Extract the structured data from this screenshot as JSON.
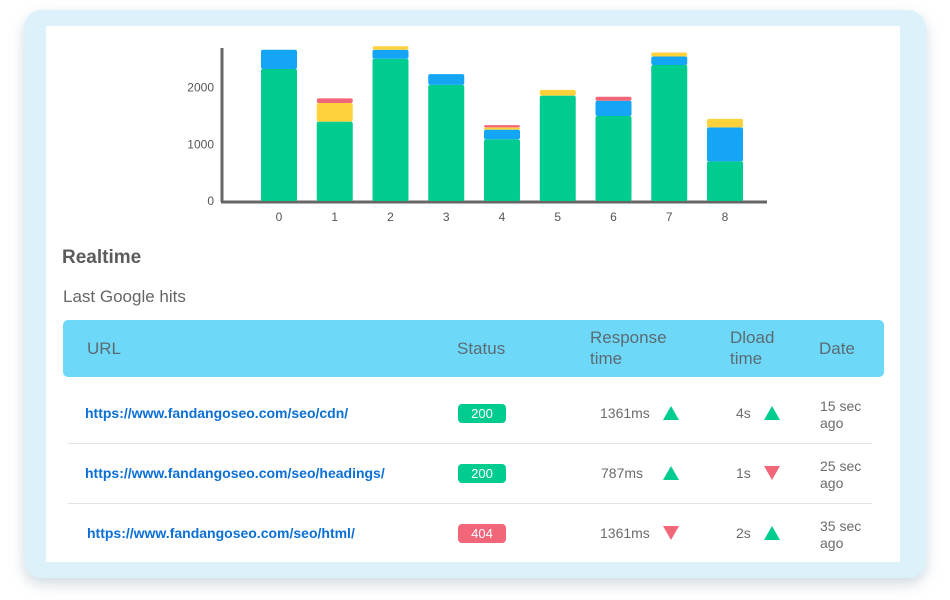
{
  "chart_data": {
    "type": "bar",
    "stacked": true,
    "categories": [
      "0",
      "1",
      "2",
      "3",
      "4",
      "5",
      "6",
      "7",
      "8"
    ],
    "series": [
      {
        "color": "#00cc90",
        "values": [
          2330,
          1400,
          2510,
          2050,
          1090,
          1860,
          1500,
          2400,
          700
        ]
      },
      {
        "color": "#14a6f5",
        "values": [
          340,
          0,
          160,
          190,
          170,
          0,
          270,
          150,
          600
        ]
      },
      {
        "color": "#ffd23c",
        "values": [
          0,
          330,
          60,
          0,
          40,
          100,
          0,
          70,
          150
        ]
      },
      {
        "color": "#f2667a",
        "values": [
          0,
          80,
          0,
          0,
          40,
          0,
          70,
          0,
          0
        ]
      }
    ],
    "y_ticks": [
      0,
      1000,
      2000
    ],
    "ylim": [
      0,
      2700
    ],
    "grid": false
  },
  "section": {
    "title": "Realtime",
    "subtitle": "Last Google hits"
  },
  "table": {
    "headers": {
      "url": "URL",
      "status": "Status",
      "response_line1": "Response",
      "response_line2": "time",
      "dload_line1": "Dload",
      "dload_line2": "time",
      "date": "Date"
    },
    "rows": [
      {
        "url": "https://www.fandangoseo.com/seo/cdn/",
        "status": "200",
        "status_color": "#00cc90",
        "response": "1361ms",
        "response_trend": "up",
        "dload": "4s",
        "dload_trend": "up",
        "date_line1": "15 sec",
        "date_line2": "ago"
      },
      {
        "url": "https://www.fandangoseo.com/seo/headings/",
        "status": "200",
        "status_color": "#00cc90",
        "response": "787ms",
        "response_trend": "up",
        "dload": "1s",
        "dload_trend": "down",
        "date_line1": "25 sec",
        "date_line2": "ago"
      },
      {
        "url": "https://www.fandangoseo.com/seo/html/",
        "status": "404",
        "status_color": "#f2667a",
        "response": "1361ms",
        "response_trend": "down",
        "dload": "2s",
        "dload_trend": "up",
        "date_line1": "35 sec",
        "date_line2": "ago"
      }
    ]
  },
  "colors": {
    "up": "#00cc90",
    "down": "#f2667a",
    "link": "#0b6fd6",
    "header_bg": "#6dd8f8"
  }
}
